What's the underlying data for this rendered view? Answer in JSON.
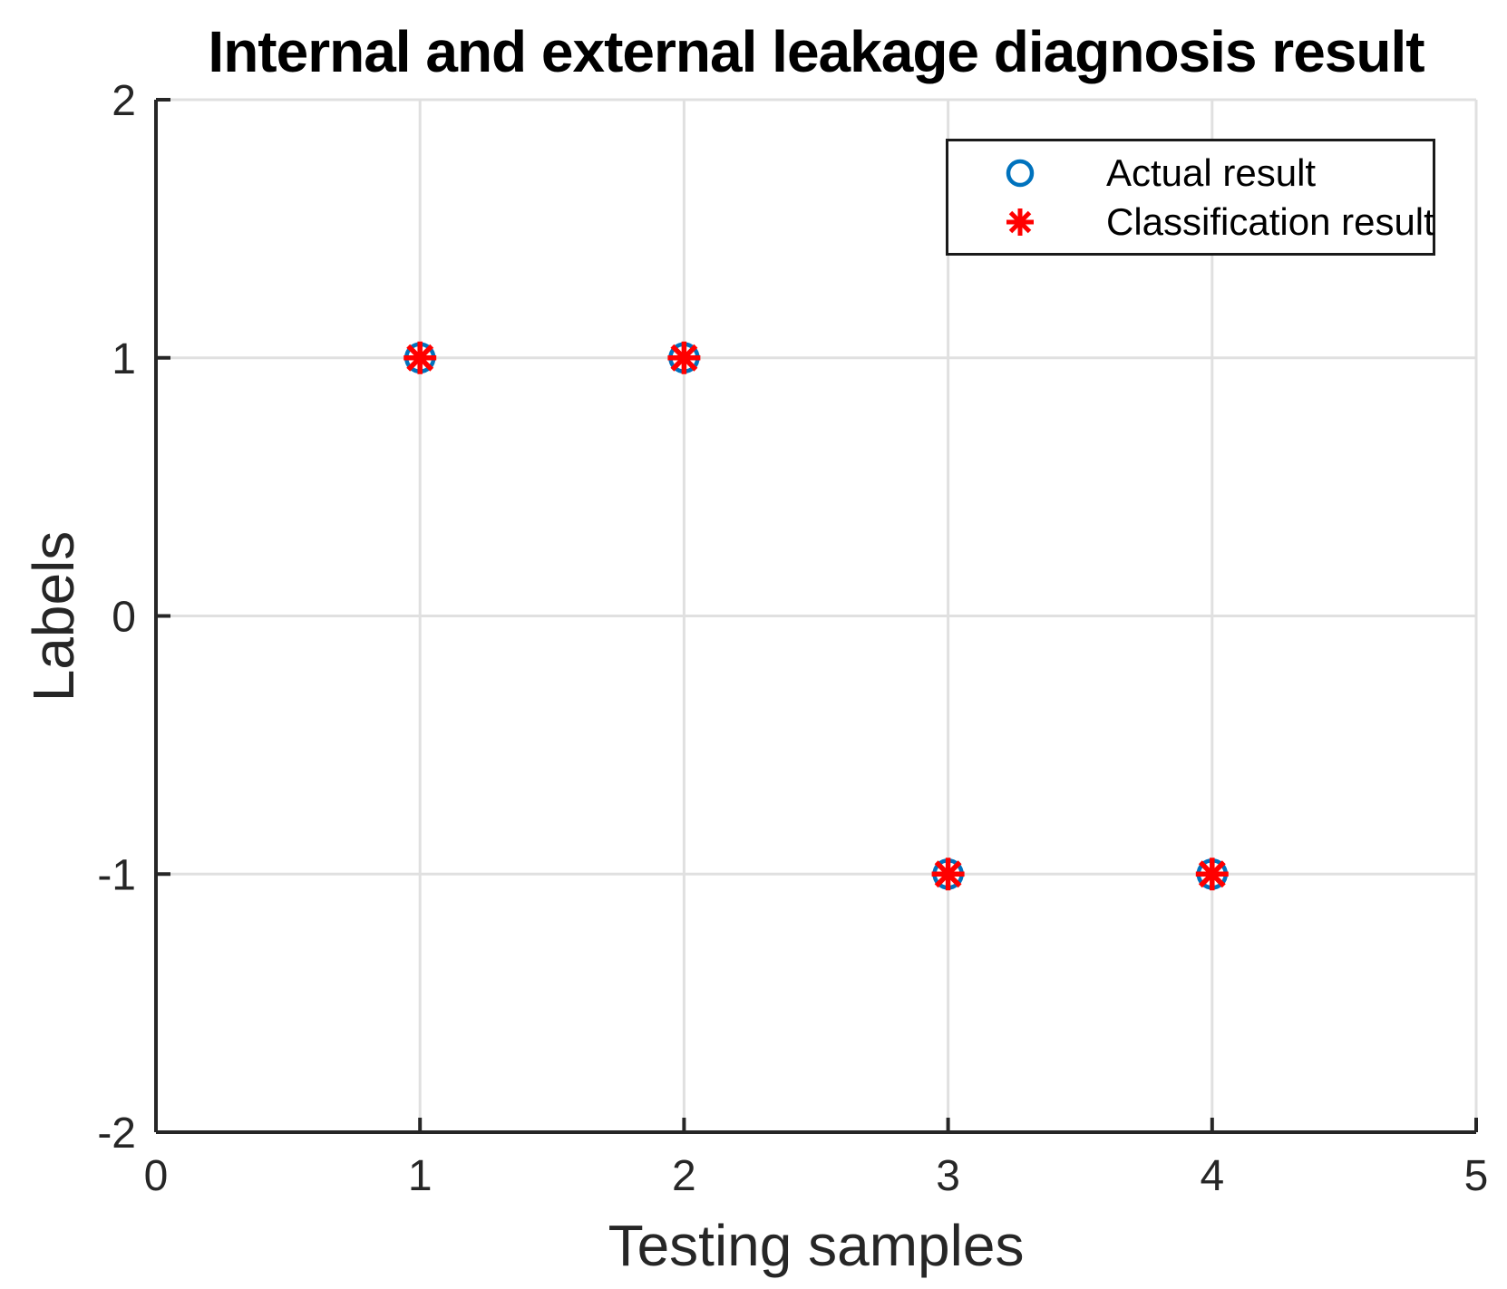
{
  "figure": {
    "background": "#ffffff"
  },
  "chart_data": {
    "type": "scatter",
    "title": "Internal and external leakage diagnosis result",
    "xlabel": "Testing samples",
    "ylabel": "Labels",
    "xlim": [
      0,
      5
    ],
    "ylim": [
      -2,
      2
    ],
    "xticks": [
      0,
      1,
      2,
      3,
      4,
      5
    ],
    "yticks": [
      -2,
      -1,
      0,
      1,
      2
    ],
    "grid": true,
    "legend_position": "upper right",
    "series": [
      {
        "name": "Actual result",
        "marker": "circle",
        "color": "#0072BD",
        "x": [
          1,
          2,
          3,
          4
        ],
        "y": [
          1,
          1,
          -1,
          -1
        ]
      },
      {
        "name": "Classification result",
        "marker": "asterisk",
        "color": "#FF0000",
        "x": [
          1,
          2,
          3,
          4
        ],
        "y": [
          1,
          1,
          -1,
          -1
        ]
      }
    ],
    "colors": {
      "grid": "#E0E0E0",
      "axis": "#262626",
      "tick_label": "#262626",
      "title": "#000000",
      "legend_border": "#1a1a1a",
      "legend_background": "#ffffff"
    }
  }
}
